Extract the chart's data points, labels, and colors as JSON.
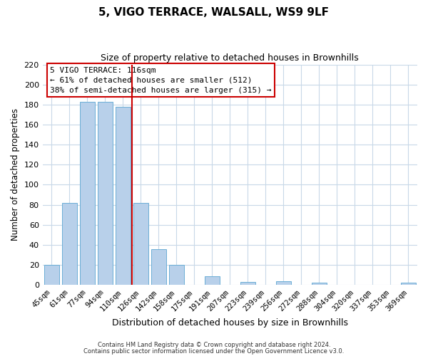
{
  "title": "5, VIGO TERRACE, WALSALL, WS9 9LF",
  "subtitle": "Size of property relative to detached houses in Brownhills",
  "xlabel": "Distribution of detached houses by size in Brownhills",
  "ylabel": "Number of detached properties",
  "bar_labels": [
    "45sqm",
    "61sqm",
    "77sqm",
    "94sqm",
    "110sqm",
    "126sqm",
    "142sqm",
    "158sqm",
    "175sqm",
    "191sqm",
    "207sqm",
    "223sqm",
    "239sqm",
    "256sqm",
    "272sqm",
    "288sqm",
    "304sqm",
    "320sqm",
    "337sqm",
    "353sqm",
    "369sqm"
  ],
  "bar_values": [
    20,
    82,
    183,
    183,
    178,
    82,
    36,
    20,
    0,
    9,
    0,
    3,
    0,
    4,
    0,
    2,
    0,
    0,
    0,
    0,
    2
  ],
  "bar_color": "#b8d0ea",
  "bar_edge_color": "#6baed6",
  "vline_color": "#cc0000",
  "annotation_title": "5 VIGO TERRACE: 116sqm",
  "annotation_line1": "← 61% of detached houses are smaller (512)",
  "annotation_line2": "38% of semi-detached houses are larger (315) →",
  "annotation_box_color": "#ffffff",
  "annotation_box_edge": "#cc0000",
  "ylim": [
    0,
    220
  ],
  "yticks": [
    0,
    20,
    40,
    60,
    80,
    100,
    120,
    140,
    160,
    180,
    200,
    220
  ],
  "footer1": "Contains HM Land Registry data © Crown copyright and database right 2024.",
  "footer2": "Contains public sector information licensed under the Open Government Licence v3.0.",
  "bg_color": "#ffffff",
  "grid_color": "#c8d8e8"
}
